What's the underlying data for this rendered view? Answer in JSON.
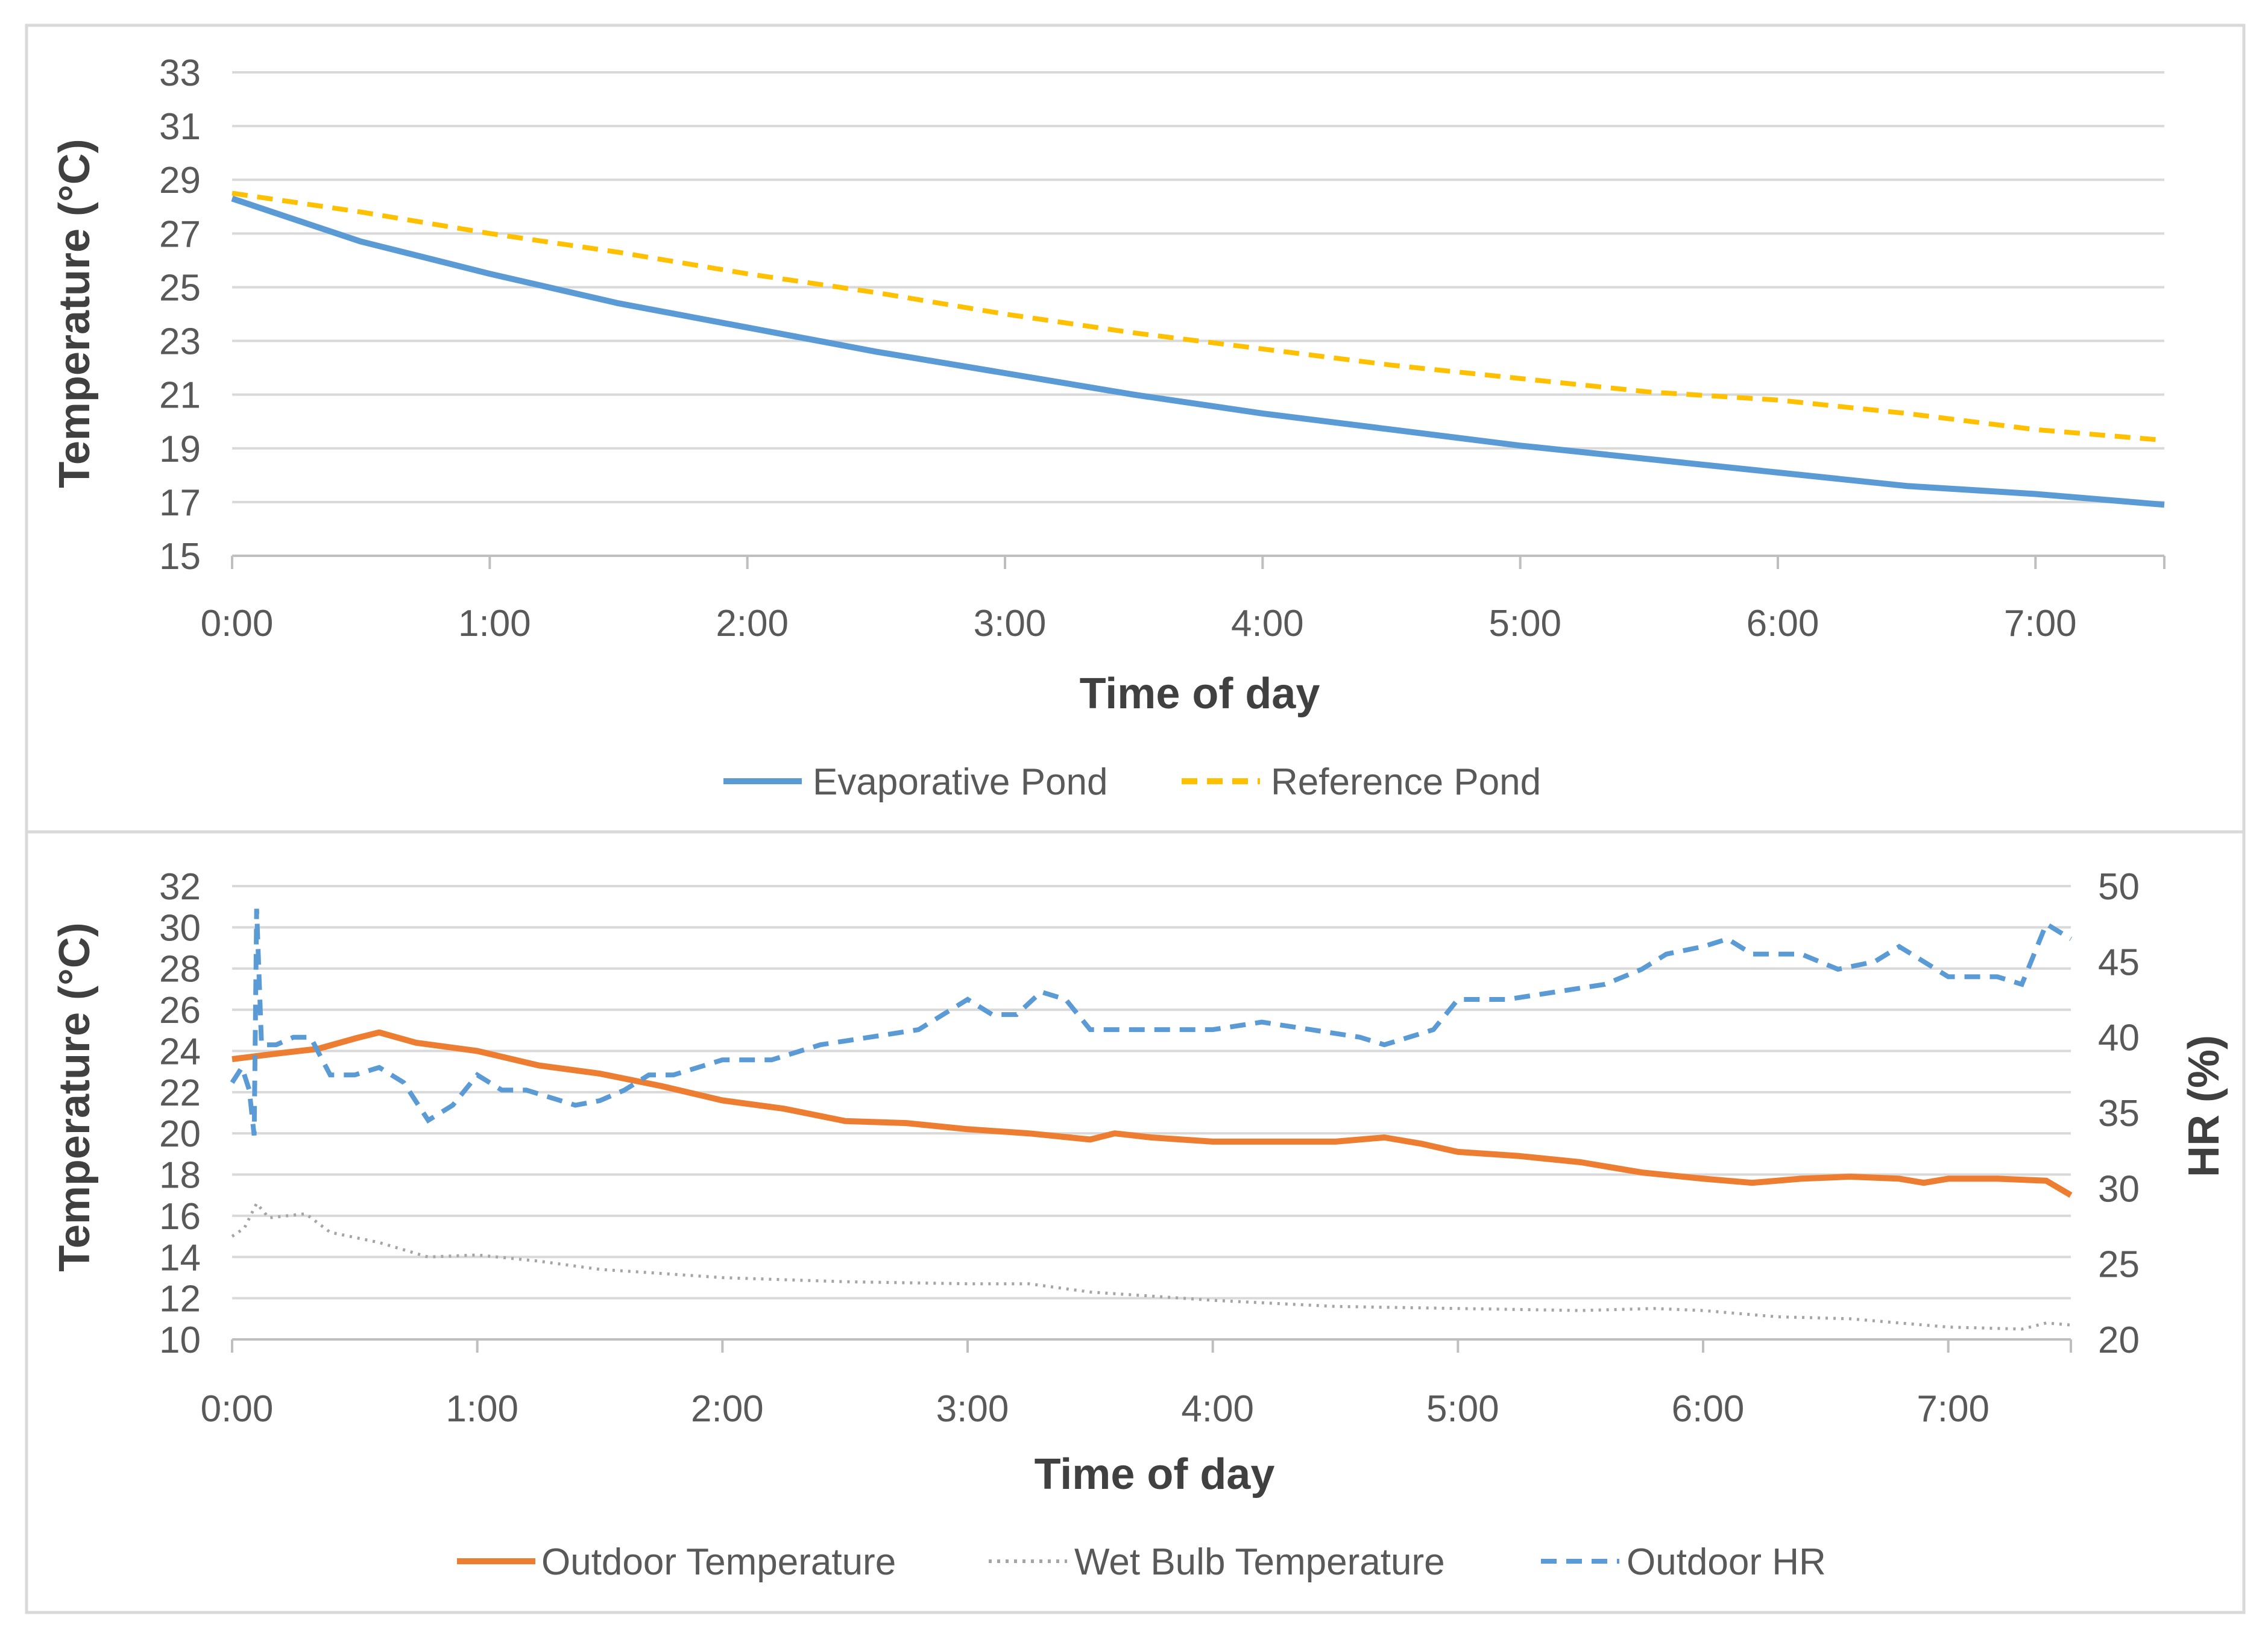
{
  "colors": {
    "evaporative": "#5b9bd5",
    "reference": "#ffc000",
    "outdoor_temp": "#ed7d31",
    "wet_bulb": "#a5a5a5",
    "outdoor_hr": "#5b9bd5"
  },
  "chart_data": [
    {
      "type": "line",
      "title": "",
      "xlabel": "Time of day",
      "ylabel": "Temperature (°C)",
      "xlim": [
        0,
        7.5
      ],
      "ylim": [
        15,
        33
      ],
      "x_tick_values": [
        0,
        1,
        2,
        3,
        4,
        5,
        6,
        7
      ],
      "x_tick_labels": [
        "0:00",
        "1:00",
        "2:00",
        "3:00",
        "4:00",
        "5:00",
        "6:00",
        "7:00"
      ],
      "y_ticks": [
        15,
        17,
        19,
        21,
        23,
        25,
        27,
        29,
        31,
        33
      ],
      "legend_position": "bottom",
      "series": [
        {
          "name": "Evaporative Pond",
          "style": "solid",
          "x": [
            0,
            0.25,
            0.5,
            0.75,
            1,
            1.5,
            2,
            2.5,
            3,
            3.5,
            4,
            4.5,
            5,
            5.5,
            6,
            6.5,
            7,
            7.5
          ],
          "y": [
            28.3,
            27.5,
            26.7,
            26.1,
            25.5,
            24.4,
            23.5,
            22.6,
            21.8,
            21.0,
            20.3,
            19.7,
            19.1,
            18.6,
            18.1,
            17.6,
            17.3,
            16.9
          ]
        },
        {
          "name": "Reference Pond",
          "style": "dashed",
          "x": [
            0,
            0.5,
            1,
            1.5,
            2,
            2.5,
            3,
            3.5,
            4,
            4.5,
            5,
            5.5,
            6,
            6.5,
            7,
            7.5
          ],
          "y": [
            28.5,
            27.8,
            27.0,
            26.3,
            25.5,
            24.8,
            24.0,
            23.3,
            22.7,
            22.1,
            21.6,
            21.1,
            20.8,
            20.3,
            19.7,
            19.3
          ]
        }
      ]
    },
    {
      "type": "line",
      "title": "",
      "xlabel": "Time of day",
      "ylabel": "Temperature (°C)",
      "y2label": "HR (%)",
      "xlim": [
        0,
        7.5
      ],
      "ylim": [
        10,
        32
      ],
      "y2lim": [
        20,
        50
      ],
      "x_tick_values": [
        0,
        1,
        2,
        3,
        4,
        5,
        6,
        7
      ],
      "x_tick_labels": [
        "0:00",
        "1:00",
        "2:00",
        "3:00",
        "4:00",
        "5:00",
        "6:00",
        "7:00"
      ],
      "y_ticks": [
        10,
        12,
        14,
        16,
        18,
        20,
        22,
        24,
        26,
        28,
        30,
        32
      ],
      "y2_ticks": [
        20,
        25,
        30,
        35,
        40,
        45,
        50
      ],
      "legend_position": "bottom",
      "series": [
        {
          "name": "Outdoor Temperature",
          "style": "solid",
          "axis": "left",
          "x": [
            0,
            0.2,
            0.35,
            0.5,
            0.6,
            0.75,
            1.0,
            1.25,
            1.5,
            1.75,
            2.0,
            2.25,
            2.5,
            2.75,
            3.0,
            3.25,
            3.5,
            3.6,
            3.75,
            4.0,
            4.25,
            4.5,
            4.7,
            4.85,
            5.0,
            5.25,
            5.5,
            5.75,
            6.0,
            6.2,
            6.4,
            6.6,
            6.8,
            6.9,
            7.0,
            7.2,
            7.4,
            7.5
          ],
          "y": [
            23.6,
            23.9,
            24.1,
            24.6,
            24.9,
            24.4,
            24.0,
            23.3,
            22.9,
            22.3,
            21.6,
            21.2,
            20.6,
            20.5,
            20.2,
            20.0,
            19.7,
            20.0,
            19.8,
            19.6,
            19.6,
            19.6,
            19.8,
            19.5,
            19.1,
            18.9,
            18.6,
            18.1,
            17.8,
            17.6,
            17.8,
            17.9,
            17.8,
            17.6,
            17.8,
            17.8,
            17.7,
            17.0
          ]
        },
        {
          "name": "Wet Bulb Temperature",
          "style": "dotted",
          "axis": "left",
          "x": [
            0,
            0.05,
            0.1,
            0.15,
            0.3,
            0.4,
            0.6,
            0.8,
            1.0,
            1.25,
            1.5,
            1.75,
            2.0,
            2.5,
            3.0,
            3.25,
            3.5,
            3.75,
            4.0,
            4.5,
            5.0,
            5.5,
            5.8,
            6.0,
            6.3,
            6.6,
            6.8,
            7.0,
            7.3,
            7.4,
            7.5
          ],
          "y": [
            15.0,
            15.4,
            16.6,
            15.9,
            16.1,
            15.2,
            14.7,
            14.0,
            14.1,
            13.8,
            13.4,
            13.2,
            13.0,
            12.8,
            12.7,
            12.7,
            12.3,
            12.1,
            11.9,
            11.6,
            11.5,
            11.4,
            11.5,
            11.4,
            11.1,
            11.0,
            10.8,
            10.6,
            10.5,
            10.8,
            10.7
          ]
        },
        {
          "name": "Outdoor HR",
          "style": "dashed",
          "axis": "right",
          "x": [
            0,
            0.04,
            0.07,
            0.09,
            0.1,
            0.12,
            0.18,
            0.25,
            0.32,
            0.4,
            0.5,
            0.6,
            0.7,
            0.8,
            0.9,
            1.0,
            1.1,
            1.2,
            1.3,
            1.4,
            1.5,
            1.6,
            1.7,
            1.8,
            1.9,
            2.0,
            2.2,
            2.4,
            2.6,
            2.8,
            3.0,
            3.1,
            3.2,
            3.3,
            3.4,
            3.5,
            3.6,
            3.8,
            4.0,
            4.2,
            4.4,
            4.6,
            4.7,
            4.8,
            4.9,
            5.0,
            5.2,
            5.4,
            5.6,
            5.75,
            5.85,
            6.0,
            6.1,
            6.2,
            6.4,
            6.55,
            6.7,
            6.8,
            6.9,
            7.0,
            7.2,
            7.3,
            7.4,
            7.5
          ],
          "y": [
            37.0,
            38.0,
            36.5,
            33.5,
            48.5,
            39.5,
            39.5,
            40.0,
            40.0,
            37.5,
            37.5,
            38.0,
            37.0,
            34.5,
            35.5,
            37.5,
            36.5,
            36.5,
            36.0,
            35.5,
            35.8,
            36.5,
            37.5,
            37.5,
            38.0,
            38.5,
            38.5,
            39.5,
            40.0,
            40.5,
            42.5,
            41.5,
            41.5,
            43.0,
            42.5,
            40.5,
            40.5,
            40.5,
            40.5,
            41.0,
            40.5,
            40.0,
            39.5,
            40.0,
            40.5,
            42.5,
            42.5,
            43.0,
            43.5,
            44.5,
            45.5,
            46.0,
            46.5,
            45.5,
            45.5,
            44.5,
            45.0,
            46.0,
            45.0,
            44.0,
            44.0,
            43.5,
            47.5,
            46.5
          ]
        }
      ]
    }
  ]
}
